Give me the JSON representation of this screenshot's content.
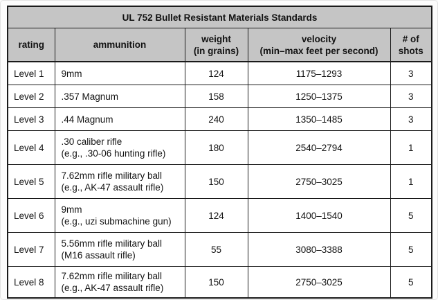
{
  "colors": {
    "header_bg": "#c5c5c5",
    "border": "#1a1a1a",
    "row_bg": "#ffffff",
    "page_bg": "#fcfcfc",
    "text": "#121212"
  },
  "table": {
    "title": "UL 752 Bullet Resistant Materials Standards",
    "columns": [
      {
        "line1": "rating",
        "line2": ""
      },
      {
        "line1": "ammunition",
        "line2": ""
      },
      {
        "line1": "weight",
        "line2": "(in grains)"
      },
      {
        "line1": "velocity",
        "line2": "(min–max feet per second)"
      },
      {
        "line1": "# of",
        "line2": "shots"
      }
    ],
    "rows": [
      {
        "rating": "Level 1",
        "ammunition": "9mm",
        "note": "",
        "weight": "124",
        "velocity": "1175–1293",
        "shots": "3"
      },
      {
        "rating": "Level 2",
        "ammunition": ".357 Magnum",
        "note": "",
        "weight": "158",
        "velocity": "1250–1375",
        "shots": "3"
      },
      {
        "rating": "Level 3",
        "ammunition": ".44 Magnum",
        "note": "",
        "weight": "240",
        "velocity": "1350–1485",
        "shots": "3"
      },
      {
        "rating": "Level 4",
        "ammunition": ".30 caliber rifle",
        "note": "(e.g., .30-06 hunting rifle)",
        "weight": "180",
        "velocity": "2540–2794",
        "shots": "1"
      },
      {
        "rating": "Level 5",
        "ammunition": "7.62mm rifle military ball",
        "note": "(e.g., AK-47 assault rifle)",
        "weight": "150",
        "velocity": "2750–3025",
        "shots": "1"
      },
      {
        "rating": "Level 6",
        "ammunition": "9mm",
        "note": "(e.g., uzi submachine gun)",
        "weight": "124",
        "velocity": "1400–1540",
        "shots": "5"
      },
      {
        "rating": "Level 7",
        "ammunition": "5.56mm rifle military ball",
        "note": "(M16 assault rifle)",
        "weight": "55",
        "velocity": "3080–3388",
        "shots": "5"
      },
      {
        "rating": "Level 8",
        "ammunition": "7.62mm rifle military ball",
        "note": "(e.g., AK-47 assault rifle)",
        "weight": "150",
        "velocity": "2750–3025",
        "shots": "5"
      }
    ]
  }
}
